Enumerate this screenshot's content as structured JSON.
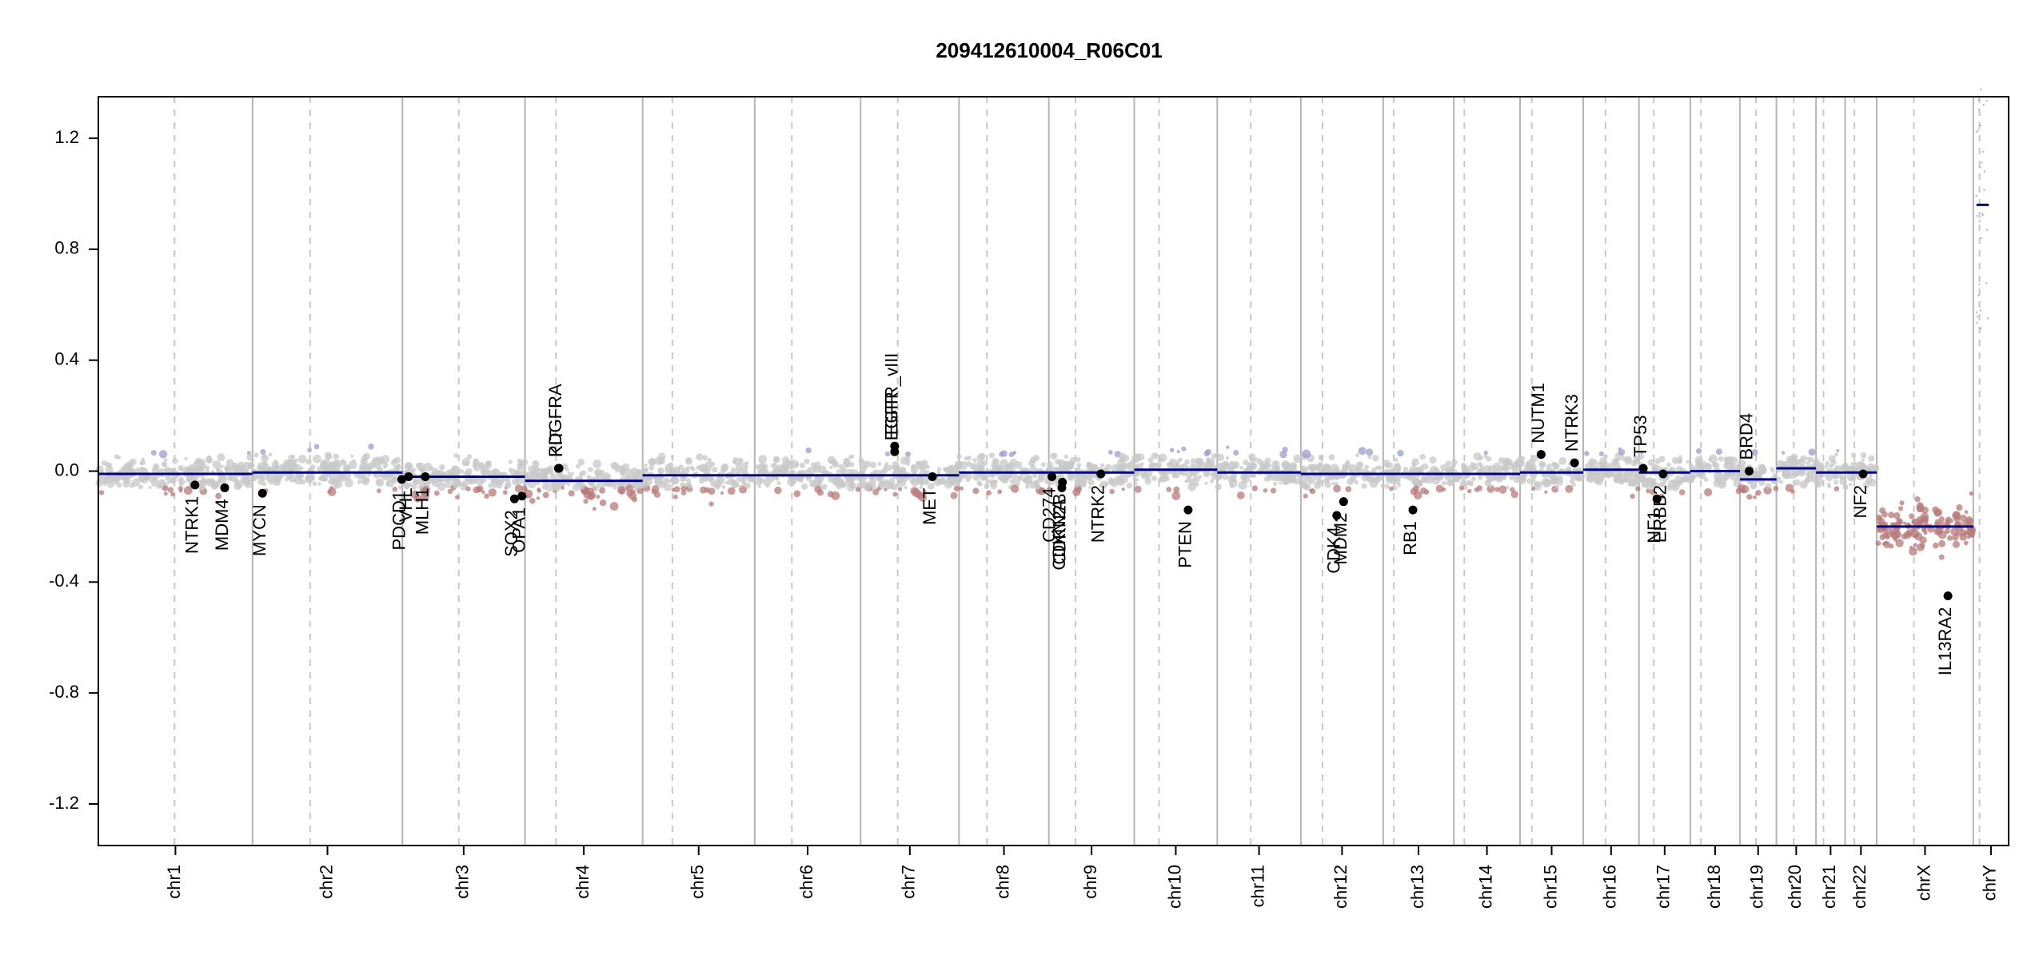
{
  "chart_data": {
    "type": "scatter",
    "title": "209412610004_R06C01",
    "xlabel": "",
    "ylabel": "",
    "ylim": [
      -1.35,
      1.35
    ],
    "yticks": [
      1.2,
      0.8,
      0.4,
      0.0,
      -0.4,
      -0.8,
      -1.2
    ],
    "ytick_labels": [
      "1.2",
      "0.8",
      "0.4",
      "0.0",
      "-0.4",
      "-0.8",
      "-1.2"
    ],
    "grid": "chromosome boundaries (solid) and centromeres (dashed)",
    "legend": "none",
    "chromosomes": [
      {
        "name": "chr1",
        "length": 249,
        "centromere": 123,
        "segments": [
          {
            "start": 0,
            "end": 249,
            "value": -0.01
          }
        ]
      },
      {
        "name": "chr2",
        "length": 242,
        "centromere": 93,
        "segments": [
          {
            "start": 0,
            "end": 242,
            "value": -0.005
          }
        ]
      },
      {
        "name": "chr3",
        "length": 198,
        "centromere": 91,
        "segments": [
          {
            "start": 0,
            "end": 198,
            "value": -0.02
          }
        ]
      },
      {
        "name": "chr4",
        "length": 190,
        "centromere": 50,
        "segments": [
          {
            "start": 0,
            "end": 190,
            "value": -0.035
          }
        ]
      },
      {
        "name": "chr5",
        "length": 181,
        "centromere": 48,
        "segments": [
          {
            "start": 0,
            "end": 181,
            "value": -0.015
          }
        ]
      },
      {
        "name": "chr6",
        "length": 171,
        "centromere": 60,
        "segments": [
          {
            "start": 0,
            "end": 171,
            "value": -0.015
          }
        ]
      },
      {
        "name": "chr7",
        "length": 159,
        "centromere": 60,
        "segments": [
          {
            "start": 0,
            "end": 159,
            "value": -0.015
          }
        ]
      },
      {
        "name": "chr8",
        "length": 145,
        "centromere": 45,
        "segments": [
          {
            "start": 0,
            "end": 145,
            "value": -0.005
          }
        ]
      },
      {
        "name": "chr9",
        "length": 138,
        "centromere": 43,
        "segments": [
          {
            "start": 0,
            "end": 138,
            "value": -0.005
          }
        ]
      },
      {
        "name": "chr10",
        "length": 134,
        "centromere": 40,
        "segments": [
          {
            "start": 0,
            "end": 134,
            "value": 0.005
          }
        ]
      },
      {
        "name": "chr11",
        "length": 135,
        "centromere": 54,
        "segments": [
          {
            "start": 0,
            "end": 135,
            "value": -0.005
          }
        ]
      },
      {
        "name": "chr12",
        "length": 133,
        "centromere": 35,
        "segments": [
          {
            "start": 0,
            "end": 133,
            "value": -0.01
          }
        ]
      },
      {
        "name": "chr13",
        "length": 114,
        "centromere": 17,
        "segments": [
          {
            "start": 0,
            "end": 114,
            "value": -0.01
          }
        ]
      },
      {
        "name": "chr14",
        "length": 107,
        "centromere": 17,
        "segments": [
          {
            "start": 0,
            "end": 107,
            "value": -0.01
          }
        ]
      },
      {
        "name": "chr15",
        "length": 102,
        "centromere": 19,
        "segments": [
          {
            "start": 0,
            "end": 102,
            "value": -0.005
          }
        ]
      },
      {
        "name": "chr16",
        "length": 90,
        "centromere": 36,
        "segments": [
          {
            "start": 0,
            "end": 90,
            "value": 0.005
          }
        ]
      },
      {
        "name": "chr17",
        "length": 83,
        "centromere": 24,
        "segments": [
          {
            "start": 0,
            "end": 83,
            "value": -0.005
          }
        ]
      },
      {
        "name": "chr18",
        "length": 80,
        "centromere": 17,
        "segments": [
          {
            "start": 0,
            "end": 80,
            "value": 0.0
          }
        ]
      },
      {
        "name": "chr19",
        "length": 59,
        "centromere": 26,
        "segments": [
          {
            "start": 0,
            "end": 59,
            "value": -0.03
          }
        ]
      },
      {
        "name": "chr20",
        "length": 64,
        "centromere": 28,
        "segments": [
          {
            "start": 0,
            "end": 64,
            "value": 0.01
          }
        ]
      },
      {
        "name": "chr21",
        "length": 47,
        "centromere": 12,
        "segments": [
          {
            "start": 0,
            "end": 47,
            "value": -0.005
          }
        ]
      },
      {
        "name": "chr22",
        "length": 51,
        "centromere": 15,
        "segments": [
          {
            "start": 0,
            "end": 51,
            "value": -0.005
          }
        ]
      },
      {
        "name": "chrX",
        "length": 156,
        "centromere": 60,
        "segments": [
          {
            "start": 0,
            "end": 156,
            "value": -0.2
          }
        ]
      },
      {
        "name": "chrY",
        "length": 57,
        "centromere": 10,
        "segments": [
          {
            "start": 5,
            "end": 25,
            "value": 0.96
          }
        ]
      }
    ],
    "genes": [
      {
        "name": "NTRK1",
        "chrom": "chr1",
        "pos": 156,
        "value": -0.05
      },
      {
        "name": "MDM4",
        "chrom": "chr1",
        "pos": 204,
        "value": -0.06
      },
      {
        "name": "MYCN",
        "chrom": "chr2",
        "pos": 16,
        "value": -0.08
      },
      {
        "name": "PDCD1",
        "chrom": "chr2",
        "pos": 241,
        "value": -0.03
      },
      {
        "name": "VHL",
        "chrom": "chr3",
        "pos": 10,
        "value": -0.02
      },
      {
        "name": "MLH1",
        "chrom": "chr3",
        "pos": 37,
        "value": -0.02
      },
      {
        "name": "SOX2",
        "chrom": "chr3",
        "pos": 181,
        "value": -0.1
      },
      {
        "name": "OPA1",
        "chrom": "chr3",
        "pos": 193,
        "value": -0.09
      },
      {
        "name": "KIT",
        "chrom": "chr4",
        "pos": 55,
        "value": 0.01
      },
      {
        "name": "PDGFRA",
        "chrom": "chr4",
        "pos": 54,
        "value": 0.01
      },
      {
        "name": "EGFR",
        "chrom": "chr7",
        "pos": 55,
        "value": 0.07
      },
      {
        "name": "EGFR_vIII",
        "chrom": "chr7",
        "pos": 55,
        "value": 0.09
      },
      {
        "name": "MET",
        "chrom": "chr7",
        "pos": 116,
        "value": -0.02
      },
      {
        "name": "CD274",
        "chrom": "chr9",
        "pos": 5,
        "value": -0.02
      },
      {
        "name": "CDKN2A",
        "chrom": "chr9",
        "pos": 21,
        "value": -0.06
      },
      {
        "name": "CDKN2B",
        "chrom": "chr9",
        "pos": 22,
        "value": -0.04
      },
      {
        "name": "NTRK2",
        "chrom": "chr9",
        "pos": 84,
        "value": -0.01
      },
      {
        "name": "PTEN",
        "chrom": "chr10",
        "pos": 87,
        "value": -0.14
      },
      {
        "name": "CDK4",
        "chrom": "chr12",
        "pos": 58,
        "value": -0.16
      },
      {
        "name": "MDM2",
        "chrom": "chr12",
        "pos": 69,
        "value": -0.11
      },
      {
        "name": "RB1",
        "chrom": "chr13",
        "pos": 48,
        "value": -0.14
      },
      {
        "name": "NUTM1",
        "chrom": "chr15",
        "pos": 34,
        "value": 0.06
      },
      {
        "name": "NTRK3",
        "chrom": "chr15",
        "pos": 88,
        "value": 0.03
      },
      {
        "name": "TP53",
        "chrom": "chr17",
        "pos": 7,
        "value": 0.01
      },
      {
        "name": "NF1",
        "chrom": "chr17",
        "pos": 29,
        "value": -0.1
      },
      {
        "name": "ERBB2",
        "chrom": "chr17",
        "pos": 39,
        "value": -0.01
      },
      {
        "name": "BRD4",
        "chrom": "chr19",
        "pos": 15,
        "value": 0.0
      },
      {
        "name": "NF2",
        "chrom": "chr22",
        "pos": 29,
        "value": -0.01
      },
      {
        "name": "IL13RA2",
        "chrom": "chrX",
        "pos": 115,
        "value": -0.45
      }
    ],
    "colors": {
      "segment": "#00008b",
      "gain_points": "#9c9ccc",
      "loss_points": "#b87a7a",
      "neutral_points": "#c8c8c8",
      "gene_marker": "#000000",
      "chrom_border": "#b5b5b5",
      "centromere": "#c8c8c8"
    }
  }
}
